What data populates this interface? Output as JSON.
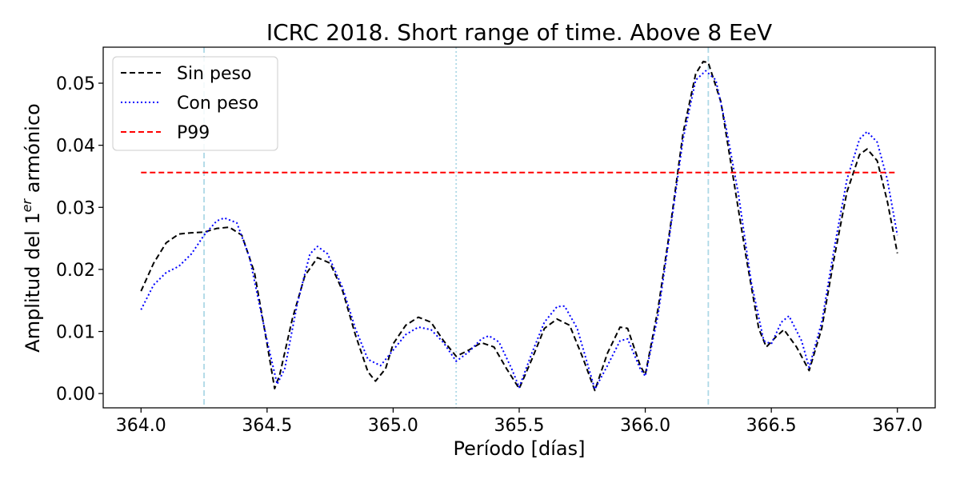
{
  "chart_data": {
    "type": "line",
    "title": "ICRC 2018. Short range of time. Above 8 EeV",
    "xlabel": "Período [días]",
    "ylabel_main": "Amplitud del 1",
    "ylabel_sup": "er",
    "ylabel_tail": " armónico",
    "xlim": [
      363.85,
      367.15
    ],
    "ylim": [
      -0.0023,
      0.0558
    ],
    "xticks": [
      364.0,
      364.5,
      365.0,
      365.5,
      366.0,
      366.5,
      367.0
    ],
    "xtick_labels": [
      "364.0",
      "364.5",
      "365.0",
      "365.5",
      "366.0",
      "366.5",
      "367.0"
    ],
    "yticks": [
      0.0,
      0.01,
      0.02,
      0.03,
      0.04,
      0.05
    ],
    "ytick_labels": [
      "0.00",
      "0.01",
      "0.02",
      "0.03",
      "0.04",
      "0.05"
    ],
    "grid": false,
    "legend_position": "top-left",
    "vertical_lines": [
      {
        "x": 364.25,
        "style": "dashed",
        "color": "#add8e6"
      },
      {
        "x": 365.25,
        "style": "dotted",
        "color": "#add8e6"
      },
      {
        "x": 366.25,
        "style": "dashed",
        "color": "#add8e6"
      }
    ],
    "hline": {
      "name": "P99",
      "y": 0.0356,
      "x_range": [
        364.0,
        367.0
      ],
      "color": "#ff0000",
      "style": "dashed"
    },
    "series": [
      {
        "name": "Sin peso",
        "color": "#000000",
        "style": "dashed",
        "points": [
          [
            364.0,
            0.0165
          ],
          [
            364.05,
            0.021
          ],
          [
            364.1,
            0.0243
          ],
          [
            364.15,
            0.0257
          ],
          [
            364.2,
            0.0259
          ],
          [
            364.25,
            0.026
          ],
          [
            364.3,
            0.0266
          ],
          [
            364.35,
            0.0268
          ],
          [
            364.4,
            0.0255
          ],
          [
            364.45,
            0.0195
          ],
          [
            364.5,
            0.008
          ],
          [
            364.53,
            0.0008
          ],
          [
            364.55,
            0.003
          ],
          [
            364.6,
            0.012
          ],
          [
            364.65,
            0.019
          ],
          [
            364.7,
            0.0219
          ],
          [
            364.75,
            0.021
          ],
          [
            364.8,
            0.0165
          ],
          [
            364.85,
            0.0095
          ],
          [
            364.9,
            0.0035
          ],
          [
            364.93,
            0.002
          ],
          [
            364.97,
            0.004
          ],
          [
            365.0,
            0.008
          ],
          [
            365.05,
            0.011
          ],
          [
            365.1,
            0.0123
          ],
          [
            365.15,
            0.0115
          ],
          [
            365.2,
            0.0085
          ],
          [
            365.25,
            0.006
          ],
          [
            365.3,
            0.007
          ],
          [
            365.35,
            0.0082
          ],
          [
            365.4,
            0.0075
          ],
          [
            365.45,
            0.004
          ],
          [
            365.5,
            0.0008
          ],
          [
            365.55,
            0.0055
          ],
          [
            365.6,
            0.0105
          ],
          [
            365.65,
            0.012
          ],
          [
            365.7,
            0.011
          ],
          [
            365.75,
            0.006
          ],
          [
            365.8,
            0.0005
          ],
          [
            365.85,
            0.0065
          ],
          [
            365.9,
            0.0107
          ],
          [
            365.93,
            0.0105
          ],
          [
            365.98,
            0.0045
          ],
          [
            366.0,
            0.003
          ],
          [
            366.05,
            0.0135
          ],
          [
            366.1,
            0.027
          ],
          [
            366.15,
            0.042
          ],
          [
            366.2,
            0.0515
          ],
          [
            366.23,
            0.0535
          ],
          [
            366.25,
            0.0533
          ],
          [
            366.3,
            0.047
          ],
          [
            366.35,
            0.0345
          ],
          [
            366.4,
            0.022
          ],
          [
            366.45,
            0.0105
          ],
          [
            366.48,
            0.0075
          ],
          [
            366.52,
            0.0092
          ],
          [
            366.55,
            0.0103
          ],
          [
            366.6,
            0.0075
          ],
          [
            366.65,
            0.0037
          ],
          [
            366.7,
            0.0105
          ],
          [
            366.75,
            0.022
          ],
          [
            366.8,
            0.0325
          ],
          [
            366.85,
            0.0385
          ],
          [
            366.88,
            0.0394
          ],
          [
            366.92,
            0.0375
          ],
          [
            366.96,
            0.031
          ],
          [
            367.0,
            0.0226
          ]
        ]
      },
      {
        "name": "Con peso",
        "color": "#0000ff",
        "style": "dotted",
        "points": [
          [
            364.0,
            0.0135
          ],
          [
            364.05,
            0.0175
          ],
          [
            364.1,
            0.0195
          ],
          [
            364.15,
            0.0205
          ],
          [
            364.2,
            0.0225
          ],
          [
            364.25,
            0.0255
          ],
          [
            364.3,
            0.0278
          ],
          [
            364.33,
            0.0283
          ],
          [
            364.38,
            0.0275
          ],
          [
            364.43,
            0.022
          ],
          [
            364.5,
            0.0085
          ],
          [
            364.54,
            0.0015
          ],
          [
            364.57,
            0.004
          ],
          [
            364.62,
            0.0145
          ],
          [
            364.67,
            0.0225
          ],
          [
            364.7,
            0.0237
          ],
          [
            364.74,
            0.0225
          ],
          [
            364.8,
            0.017
          ],
          [
            364.85,
            0.0105
          ],
          [
            364.9,
            0.0055
          ],
          [
            364.95,
            0.0045
          ],
          [
            365.0,
            0.007
          ],
          [
            365.05,
            0.0095
          ],
          [
            365.1,
            0.0107
          ],
          [
            365.15,
            0.0103
          ],
          [
            365.2,
            0.0082
          ],
          [
            365.25,
            0.0052
          ],
          [
            365.3,
            0.0067
          ],
          [
            365.35,
            0.0088
          ],
          [
            365.38,
            0.0093
          ],
          [
            365.42,
            0.0083
          ],
          [
            365.47,
            0.004
          ],
          [
            365.5,
            0.001
          ],
          [
            365.55,
            0.0065
          ],
          [
            365.6,
            0.0115
          ],
          [
            365.65,
            0.014
          ],
          [
            365.68,
            0.0141
          ],
          [
            365.73,
            0.0105
          ],
          [
            365.78,
            0.0035
          ],
          [
            365.8,
            0.0007
          ],
          [
            365.85,
            0.0045
          ],
          [
            365.9,
            0.0085
          ],
          [
            365.93,
            0.0088
          ],
          [
            365.98,
            0.004
          ],
          [
            366.0,
            0.0028
          ],
          [
            366.05,
            0.0125
          ],
          [
            366.1,
            0.0265
          ],
          [
            366.15,
            0.041
          ],
          [
            366.2,
            0.0505
          ],
          [
            366.24,
            0.052
          ],
          [
            366.28,
            0.0505
          ],
          [
            366.32,
            0.043
          ],
          [
            366.37,
            0.032
          ],
          [
            366.42,
            0.018
          ],
          [
            366.47,
            0.0085
          ],
          [
            366.5,
            0.008
          ],
          [
            366.54,
            0.0115
          ],
          [
            366.57,
            0.0125
          ],
          [
            366.62,
            0.0085
          ],
          [
            366.65,
            0.0042
          ],
          [
            366.7,
            0.0115
          ],
          [
            366.75,
            0.0235
          ],
          [
            366.8,
            0.0345
          ],
          [
            366.85,
            0.041
          ],
          [
            366.88,
            0.0422
          ],
          [
            366.92,
            0.0405
          ],
          [
            366.96,
            0.0345
          ],
          [
            367.0,
            0.0255
          ]
        ]
      }
    ]
  }
}
